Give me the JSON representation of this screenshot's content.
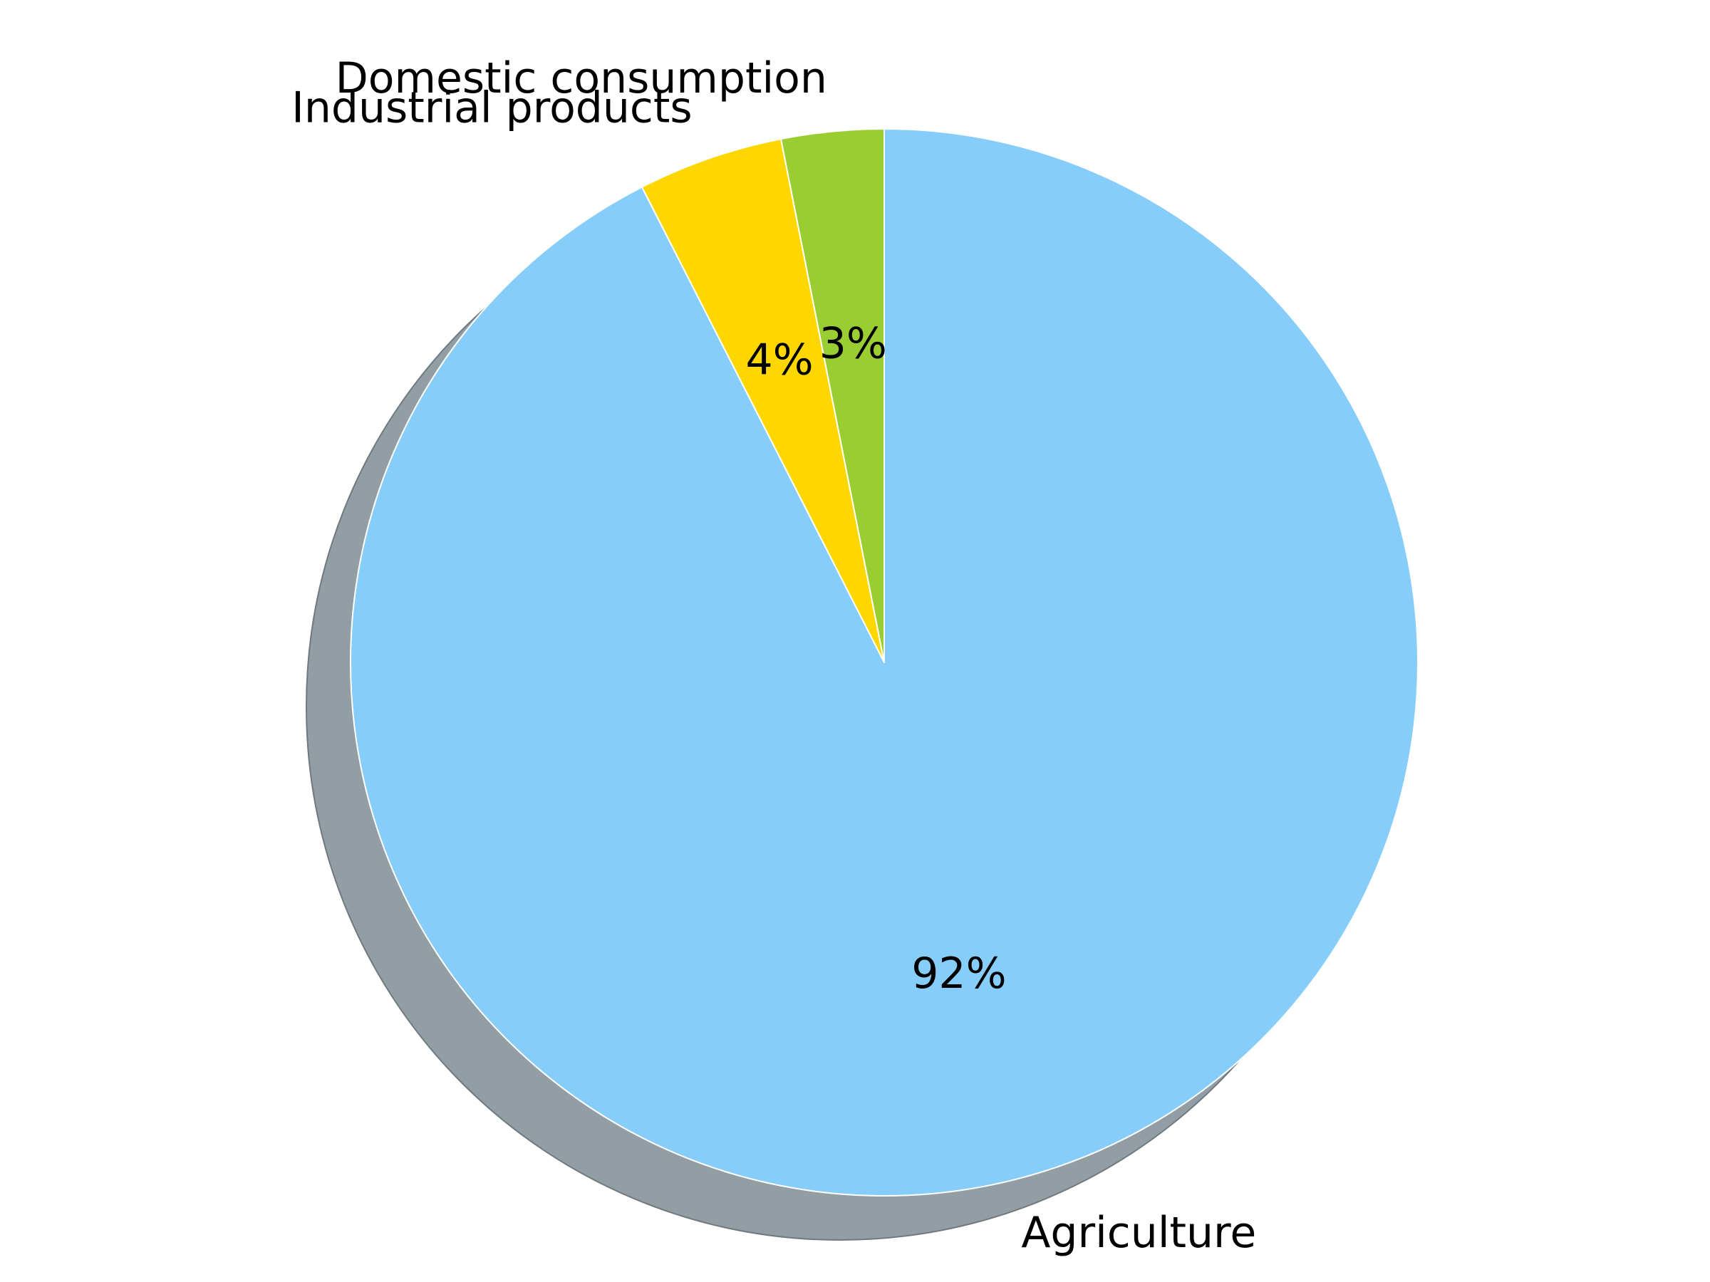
{
  "chart_data": {
    "type": "pie",
    "categories": [
      "Agriculture",
      "Industrial products",
      "Domestic consumption"
    ],
    "values": [
      92.5,
      4.4,
      3.1
    ],
    "percent_labels": [
      "92%",
      "4%",
      "3%"
    ],
    "colors": [
      "#87cdf9",
      "#ffd700",
      "#9acd32"
    ],
    "shadow_color": "#939ea4",
    "edge_color": "#ffffff",
    "start_angle_deg": 90,
    "direction": "clockwise",
    "shadow": true,
    "title": "",
    "legend": "none"
  }
}
